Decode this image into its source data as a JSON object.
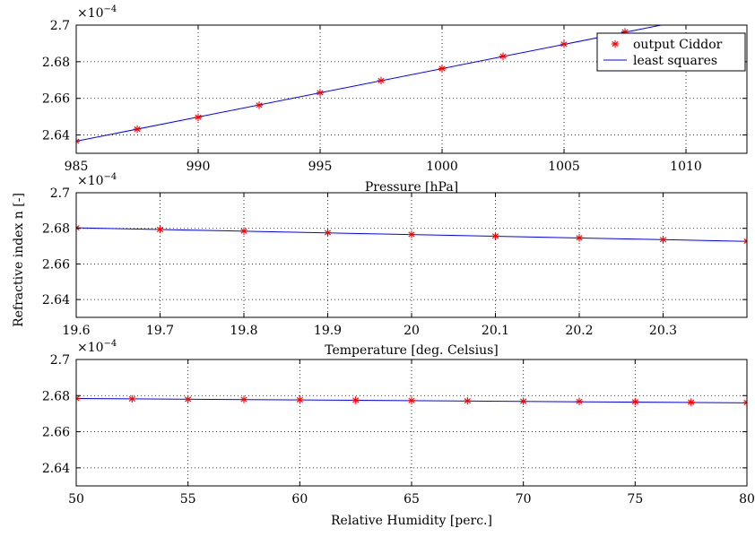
{
  "ylabel": "Refractive index n [-]",
  "chart_data": [
    {
      "type": "scatter",
      "xlabel": "Pressure [hPa]",
      "xlim": [
        985,
        1012.5
      ],
      "ylim": [
        2.63,
        2.7
      ],
      "xticks": [
        "985",
        "990",
        "995",
        "1000",
        "1005",
        "1010"
      ],
      "xtick_values": [
        985,
        990,
        995,
        1000,
        1005,
        1010
      ],
      "yticks": [
        "2.64",
        "2.66",
        "2.68",
        "2.7"
      ],
      "ytick_values": [
        2.64,
        2.66,
        2.68,
        2.7
      ],
      "multiplier": [
        "×10",
        "−4"
      ],
      "grid": true,
      "legend": {
        "placement": "top-right",
        "entries": [
          "output Ciddor",
          "least squares"
        ]
      },
      "series": [
        {
          "name": "output Ciddor",
          "kind": "markers",
          "x": [
            985,
            987.5,
            990,
            992.5,
            995,
            997.5,
            1000,
            1002.5,
            1005,
            1007.5,
            1010
          ],
          "y": [
            2.6366,
            2.6432,
            2.6497,
            2.6563,
            2.6631,
            2.6697,
            2.6763,
            2.683,
            2.6896,
            2.6963,
            2.703
          ]
        },
        {
          "name": "least squares",
          "kind": "line",
          "x": [
            985,
            1012.5
          ],
          "y": [
            2.6366,
            2.7093
          ]
        }
      ]
    },
    {
      "type": "scatter",
      "xlabel": "Temperature [deg. Celsius]",
      "xlim": [
        19.6,
        20.4
      ],
      "ylim": [
        2.63,
        2.7
      ],
      "xticks": [
        "19.6",
        "19.7",
        "19.8",
        "19.9",
        "20",
        "20.1",
        "20.2",
        "20.3"
      ],
      "xtick_values": [
        19.6,
        19.7,
        19.8,
        19.9,
        20.0,
        20.1,
        20.2,
        20.3
      ],
      "yticks": [
        "2.64",
        "2.66",
        "2.68",
        "2.7"
      ],
      "ytick_values": [
        2.64,
        2.66,
        2.68,
        2.7
      ],
      "multiplier": [
        "×10",
        "−4"
      ],
      "grid": true,
      "series": [
        {
          "name": "output Ciddor",
          "kind": "markers",
          "x": [
            19.6,
            19.7,
            19.8,
            19.9,
            20.0,
            20.1,
            20.2,
            20.3,
            20.4
          ],
          "y": [
            2.6803,
            2.6794,
            2.6785,
            2.6776,
            2.6766,
            2.6757,
            2.6747,
            2.6737,
            2.6728
          ]
        },
        {
          "name": "least squares",
          "kind": "line",
          "x": [
            19.6,
            20.4
          ],
          "y": [
            2.6803,
            2.6727
          ]
        }
      ]
    },
    {
      "type": "scatter",
      "xlabel": "Relative Humidity [perc.]",
      "xlim": [
        50,
        80
      ],
      "ylim": [
        2.63,
        2.7
      ],
      "xticks": [
        "50",
        "55",
        "60",
        "65",
        "70",
        "75",
        "80"
      ],
      "xtick_values": [
        50,
        55,
        60,
        65,
        70,
        75,
        80
      ],
      "yticks": [
        "2.64",
        "2.66",
        "2.68",
        "2.7"
      ],
      "ytick_values": [
        2.64,
        2.66,
        2.68,
        2.7
      ],
      "multiplier": [
        "×10",
        "−4"
      ],
      "grid": true,
      "series": [
        {
          "name": "output Ciddor",
          "kind": "markers",
          "x": [
            50,
            52.5,
            55,
            57.5,
            60,
            62.5,
            65,
            67.5,
            70,
            72.5,
            75,
            77.5,
            80
          ],
          "y": [
            2.6784,
            2.6782,
            2.678,
            2.6779,
            2.6777,
            2.6775,
            2.6773,
            2.6771,
            2.6769,
            2.6768,
            2.6766,
            2.6764,
            2.6762
          ]
        },
        {
          "name": "least squares",
          "kind": "line",
          "x": [
            50,
            80
          ],
          "y": [
            2.6784,
            2.676
          ]
        }
      ]
    }
  ],
  "colors": {
    "markers": "#ff0000",
    "line": "#0000ff",
    "grid": "#000000",
    "axes": "#000000"
  }
}
